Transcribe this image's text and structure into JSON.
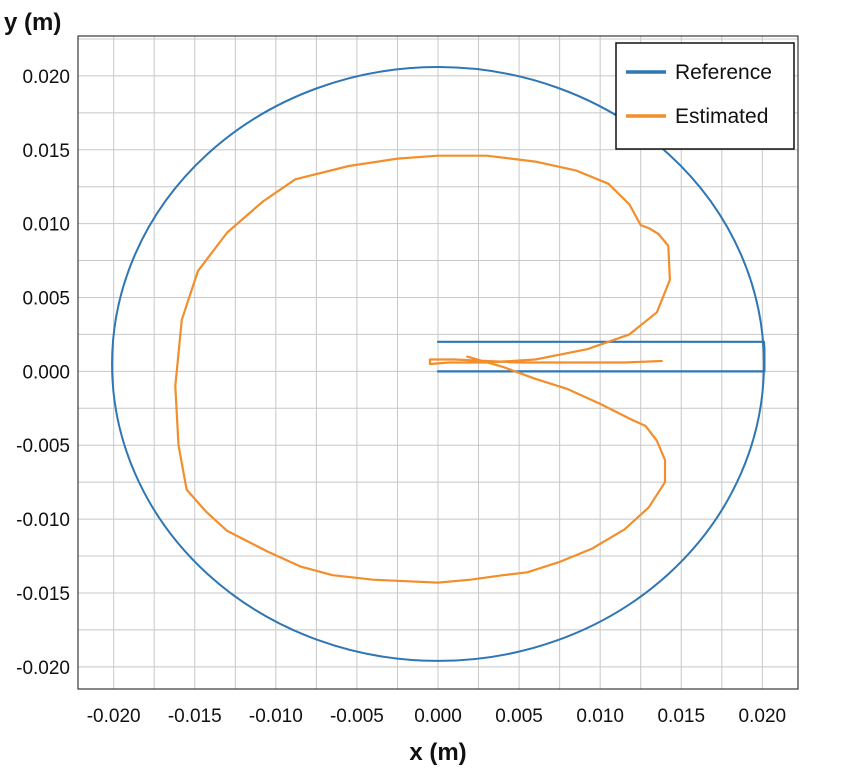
{
  "chart_data": {
    "type": "line",
    "xlabel": "x (m)",
    "ylabel": "y (m)",
    "xlim": [
      -0.0222,
      0.0222
    ],
    "ylim": [
      -0.0215,
      0.0227
    ],
    "grid": true,
    "legend_position": "top-right",
    "x_ticks": [
      "-0.020",
      "-0.015",
      "-0.010",
      "-0.005",
      "0.000",
      "0.005",
      "0.010",
      "0.015",
      "0.020"
    ],
    "y_ticks": [
      "0.020",
      "0.015",
      "0.010",
      "0.005",
      "0.000",
      "-0.005",
      "-0.010",
      "-0.015",
      "-0.020"
    ],
    "series": [
      {
        "name": "Reference",
        "color": "#2f77b4",
        "x": [
          0.0,
          0.0201,
          0.02013,
          0.02013,
          0.0201,
          0.0
        ],
        "y": [
          0.002,
          0.002,
          0.0015,
          0.0,
          0.0,
          0.0
        ],
        "circle": {
          "cx": 0.0,
          "cy": 0.0005,
          "r": 0.0201
        }
      },
      {
        "name": "Estimated",
        "color": "#f28e2b",
        "x": [
          0.0018,
          0.004,
          0.006,
          0.008,
          0.01,
          0.012,
          0.0128,
          0.0135,
          0.014,
          0.014,
          0.013,
          0.0115,
          0.0095,
          0.0075,
          0.0055,
          0.004,
          0.002,
          0.0,
          -0.002,
          -0.004,
          -0.0065,
          -0.0085,
          -0.0105,
          -0.013,
          -0.0143,
          -0.0155,
          -0.016,
          -0.0162,
          -0.0158,
          -0.0148,
          -0.013,
          -0.0108,
          -0.0088,
          -0.0055,
          -0.0025,
          0.0,
          0.003,
          0.006,
          0.0085,
          0.0105,
          0.0118,
          0.0125,
          0.013,
          0.0136,
          0.0142,
          0.0143,
          0.0135,
          0.0118,
          0.0092,
          0.006,
          0.003,
          0.0007,
          -0.0005,
          -0.0005,
          0.001,
          0.003,
          0.005,
          0.0075,
          0.0095,
          0.0115,
          0.0138
        ],
        "y": [
          0.001,
          0.0003,
          -0.0005,
          -0.0012,
          -0.0022,
          -0.0033,
          -0.0037,
          -0.0047,
          -0.006,
          -0.0075,
          -0.0092,
          -0.0107,
          -0.012,
          -0.0129,
          -0.0136,
          -0.0138,
          -0.0141,
          -0.0143,
          -0.0142,
          -0.0141,
          -0.0138,
          -0.0132,
          -0.0122,
          -0.0108,
          -0.0095,
          -0.008,
          -0.005,
          -0.001,
          0.0035,
          0.0068,
          0.0094,
          0.0115,
          0.013,
          0.0139,
          0.0144,
          0.0146,
          0.0146,
          0.0142,
          0.0136,
          0.0127,
          0.0113,
          0.0099,
          0.0097,
          0.0093,
          0.0085,
          0.0062,
          0.004,
          0.0025,
          0.0015,
          0.0008,
          0.0006,
          0.0006,
          0.0005,
          0.0008,
          0.0008,
          0.0007,
          0.0006,
          0.0006,
          0.0006,
          0.0006,
          0.0007
        ]
      }
    ]
  }
}
